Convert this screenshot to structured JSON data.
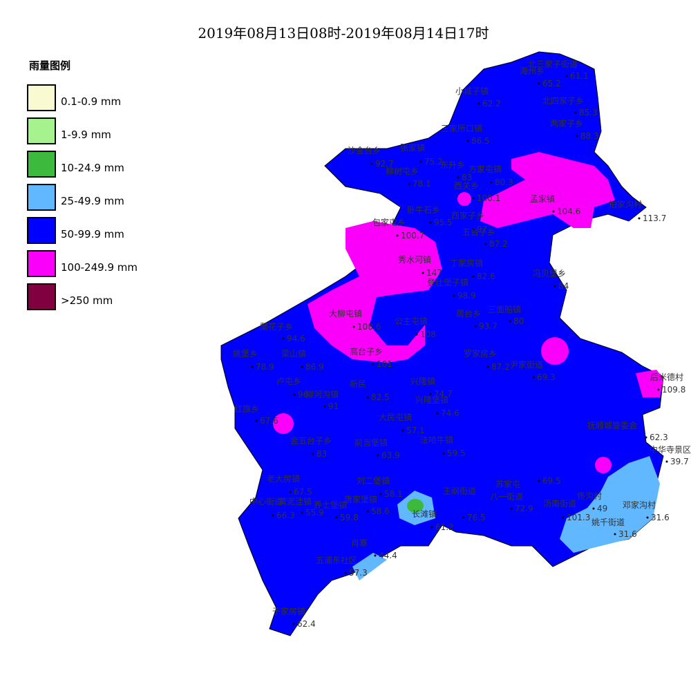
{
  "title": "2019年08月13日08时-2019年08月14日17时",
  "legend": {
    "title": "雨量图例",
    "items": [
      {
        "label": "0.1-0.9 mm",
        "color": "#fafad2"
      },
      {
        "label": "1-9.9 mm",
        "color": "#a6f28f"
      },
      {
        "label": "10-24.9 mm",
        "color": "#3dba3d"
      },
      {
        "label": "25-49.9 mm",
        "color": "#61b8ff"
      },
      {
        "label": "50-99.9 mm",
        "color": "#0000ff"
      },
      {
        "label": "100-249.9 mm",
        "color": "#fa00fa"
      },
      {
        "label": ">250 mm",
        "color": "#800040"
      }
    ]
  },
  "stations": [
    {
      "name": "北三家子街道",
      "value": 61.1
    },
    {
      "name": "海州乡",
      "value": 65.2
    },
    {
      "name": "小城子镇",
      "value": 62.2
    },
    {
      "name": "北四家子乡",
      "value": 85.3
    },
    {
      "name": "两家子乡",
      "value": 88.3
    },
    {
      "name": "三家所口镇",
      "value": 86.5
    },
    {
      "name": "沙金台乡",
      "value": 92.7
    },
    {
      "name": "张家镇",
      "value": 75.2
    },
    {
      "name": "柳树屯乡",
      "value": 78.1
    },
    {
      "name": "东升乡",
      "value": 83
    },
    {
      "name": "方家屯镇",
      "value": 80.3
    },
    {
      "name": "西关乡",
      "value": 100.1
    },
    {
      "name": "孟家镇",
      "value": 104.6
    },
    {
      "name": "卧牛石乡",
      "value": 95.5
    },
    {
      "name": "西家子乡",
      "value": 97
    },
    {
      "name": "五台子乡",
      "value": 87.2
    },
    {
      "name": "包家屯乡",
      "value": 100.7
    },
    {
      "name": "秀水河镇",
      "value": 147
    },
    {
      "name": "丁家房镇",
      "value": 82.6
    },
    {
      "name": "冯贝堡乡",
      "value": 84
    },
    {
      "name": "登仕堡子镇",
      "value": 98.9
    },
    {
      "name": "大柳屯镇",
      "value": 108.6
    },
    {
      "name": "公主屯镇",
      "value": 108
    },
    {
      "name": "周台乡",
      "value": 93.7
    },
    {
      "name": "三面船镇",
      "value": 80
    },
    {
      "name": "蘭花子乡",
      "value": 94.6
    },
    {
      "name": "高台子乡",
      "value": 101
    },
    {
      "name": "罗家房乡",
      "value": 87.2
    },
    {
      "name": "姚堡乡",
      "value": 78.9
    },
    {
      "name": "梁山镇",
      "value": 86.9
    },
    {
      "name": "尹家街道",
      "value": 69.3
    },
    {
      "name": "卢屯乡",
      "value": 96
    },
    {
      "name": "柳河沟镇",
      "value": 91
    },
    {
      "name": "新民",
      "value": 82.5
    },
    {
      "name": "兴隆镇",
      "value": 74.7
    },
    {
      "name": "兴隆堡镇",
      "value": 74.6
    },
    {
      "name": "红旗乡",
      "value": 67.6
    },
    {
      "name": "大民屯镇",
      "value": 57.1
    },
    {
      "name": "金五台子乡",
      "value": 83
    },
    {
      "name": "前当堡镇",
      "value": 63.9
    },
    {
      "name": "法哈牛镇",
      "value": 59.5
    },
    {
      "name": "抚顺城管委会",
      "value": 62.3
    },
    {
      "name": "中华寺景区",
      "value": 39.7
    },
    {
      "name": "长滩镇",
      "value": 61.2
    },
    {
      "name": "刘二堡镇",
      "value": 58.1
    },
    {
      "name": "老大房镇",
      "value": 67.5
    },
    {
      "name": "中心街道",
      "value": 66.3
    },
    {
      "name": "黄泥洼镇",
      "value": 55.9
    },
    {
      "name": "养士堡镇",
      "value": 59.8
    },
    {
      "name": "唐家堡镇",
      "value": 58.6
    },
    {
      "name": "王纲街道",
      "value": 76.5
    },
    {
      "name": "八一街道",
      "value": 72.9
    },
    {
      "name": "苏家屯",
      "value": 69.5
    },
    {
      "name": "佟沟村",
      "value": 49
    },
    {
      "name": "邓家沟村",
      "value": 31.6
    },
    {
      "name": "姚千街道",
      "value": 31.6
    },
    {
      "name": "汤南街道",
      "value": 101.3
    },
    {
      "name": "肖寨",
      "value": 44.4
    },
    {
      "name": "五浦东社区",
      "value": 57.3
    },
    {
      "name": "于家房镇",
      "value": 62.4
    },
    {
      "name": "柏家沟村",
      "value": 113.7
    },
    {
      "name": "后米德村",
      "value": 109.8
    }
  ]
}
